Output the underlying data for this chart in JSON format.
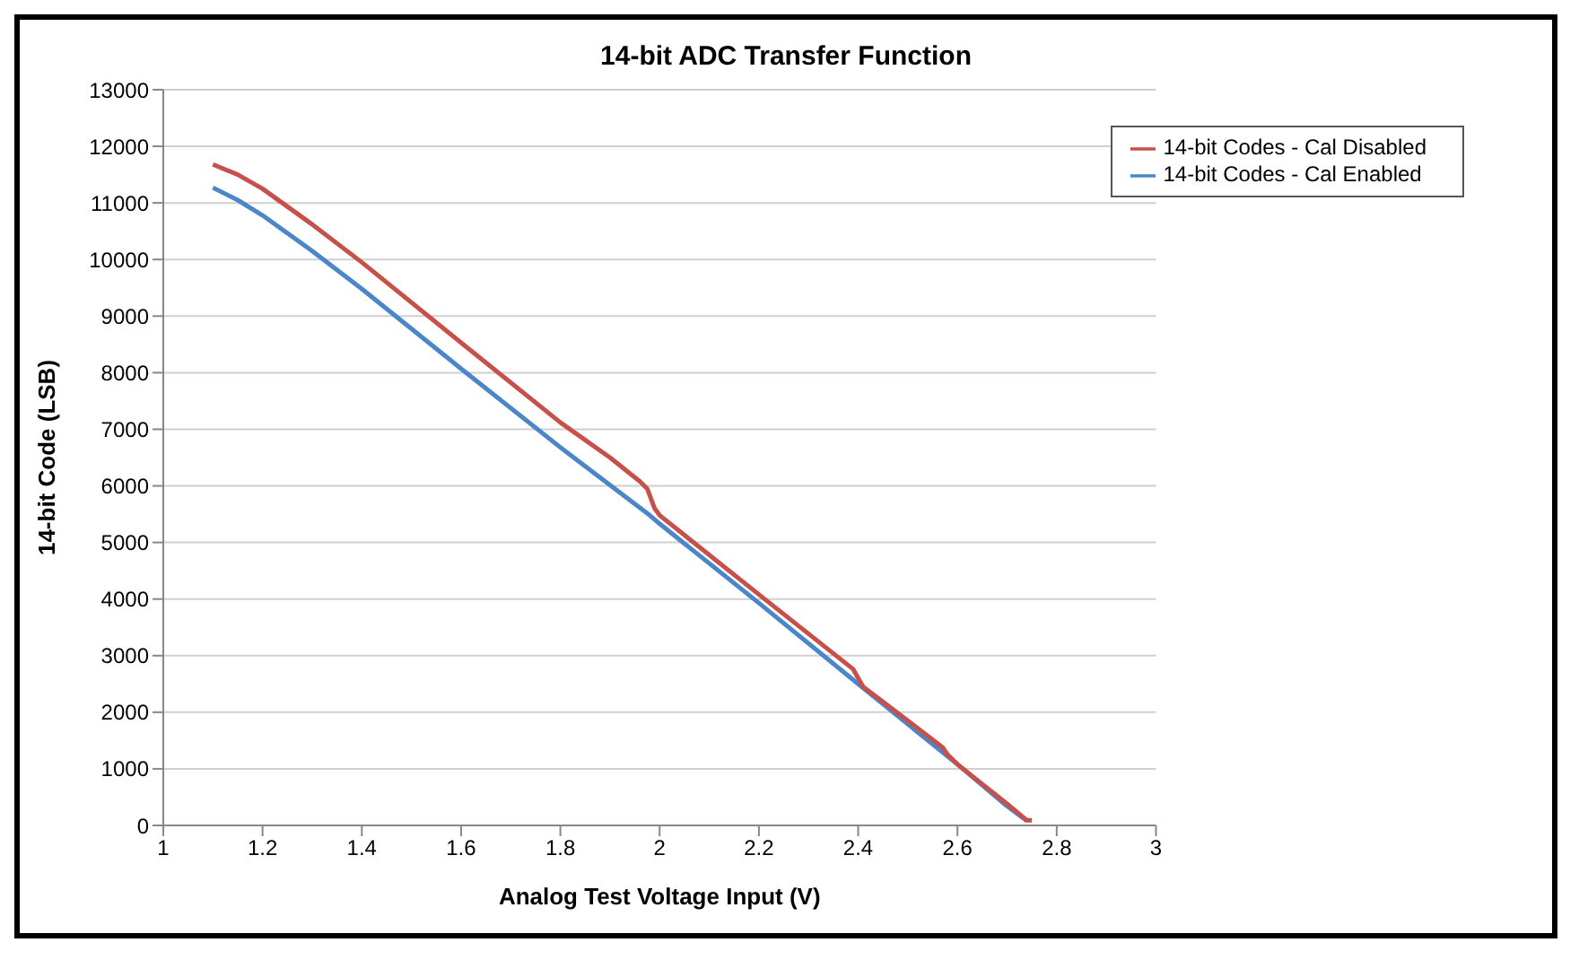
{
  "chart_data": {
    "type": "line",
    "title": "14-bit ADC Transfer Function",
    "xlabel": "Analog Test Voltage Input (V)",
    "ylabel": "14-bit Code (LSB)",
    "xlim": [
      1,
      3
    ],
    "xticks": [
      1,
      1.2,
      1.4,
      1.6,
      1.8,
      2,
      2.2,
      2.4,
      2.6,
      2.8,
      3
    ],
    "ylim": [
      0,
      13000
    ],
    "yticks": [
      0,
      1000,
      2000,
      3000,
      4000,
      5000,
      6000,
      7000,
      8000,
      9000,
      10000,
      11000,
      12000,
      13000
    ],
    "grid": "y",
    "legend": "top right",
    "marker": "none",
    "line_style": "solid",
    "series": [
      {
        "name": "14-bit Codes - Cal Enabled",
        "color": "#4a86c8",
        "x": [
          1.1,
          1.15,
          1.2,
          1.3,
          1.4,
          1.6,
          1.8,
          1.98,
          2.0,
          2.2,
          2.4,
          2.6,
          2.7,
          2.74
        ],
        "values": [
          11270,
          11050,
          10780,
          10150,
          9480,
          8070,
          6680,
          5480,
          5330,
          3930,
          2500,
          1080,
          340,
          80
        ]
      },
      {
        "name": "14-bit Codes - Cal Disabled",
        "color": "#c8504b",
        "x": [
          1.1,
          1.15,
          1.2,
          1.3,
          1.4,
          1.6,
          1.8,
          1.9,
          1.96,
          1.975,
          1.99,
          2.0,
          2.2,
          2.39,
          2.41,
          2.5,
          2.57,
          2.58,
          2.6,
          2.7,
          2.74,
          2.75
        ],
        "values": [
          11680,
          11500,
          11250,
          10620,
          9950,
          8530,
          7120,
          6500,
          6080,
          5950,
          5600,
          5480,
          4080,
          2760,
          2450,
          1850,
          1380,
          1250,
          1080,
          380,
          90,
          90
        ]
      }
    ]
  }
}
